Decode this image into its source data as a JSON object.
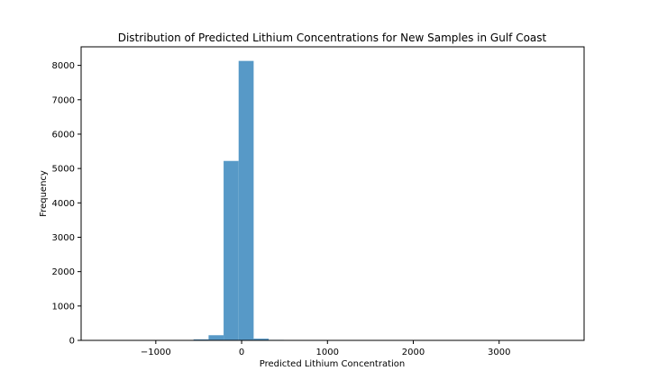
{
  "chart_data": {
    "type": "bar",
    "title": "Distribution of Predicted Lithium Concentrations for New Samples in Gulf Coast",
    "xlabel": "Predicted Lithium Concentration",
    "ylabel": "Frequency",
    "xlim": [
      -1870,
      3990
    ],
    "ylim": [
      0,
      8540
    ],
    "xticks": [
      -1000,
      0,
      1000,
      2000,
      3000
    ],
    "xtick_labels": [
      "−1000",
      "0",
      "1000",
      "2000",
      "3000"
    ],
    "yticks": [
      0,
      1000,
      2000,
      3000,
      4000,
      5000,
      6000,
      7000,
      8000
    ],
    "ytick_labels": [
      "0",
      "1000",
      "2000",
      "3000",
      "4000",
      "5000",
      "6000",
      "7000",
      "8000"
    ],
    "bar_color": "#5799c7",
    "grid": false,
    "bins": [
      {
        "x0": -1610,
        "x1": -1435,
        "count": 1
      },
      {
        "x0": -1435,
        "x1": -1260,
        "count": 1
      },
      {
        "x0": -1260,
        "x1": -1085,
        "count": 2
      },
      {
        "x0": -1085,
        "x1": -910,
        "count": 3
      },
      {
        "x0": -910,
        "x1": -735,
        "count": 5
      },
      {
        "x0": -735,
        "x1": -560,
        "count": 10
      },
      {
        "x0": -560,
        "x1": -385,
        "count": 30
      },
      {
        "x0": -385,
        "x1": -210,
        "count": 150
      },
      {
        "x0": -210,
        "x1": -35,
        "count": 5220
      },
      {
        "x0": -35,
        "x1": 140,
        "count": 8130
      },
      {
        "x0": 140,
        "x1": 315,
        "count": 50
      },
      {
        "x0": 315,
        "x1": 490,
        "count": 15
      },
      {
        "x0": 490,
        "x1": 665,
        "count": 5
      },
      {
        "x0": 665,
        "x1": 840,
        "count": 3
      },
      {
        "x0": 840,
        "x1": 1015,
        "count": 2
      },
      {
        "x0": 1015,
        "x1": 1190,
        "count": 1
      },
      {
        "x0": 1190,
        "x1": 1365,
        "count": 1
      },
      {
        "x0": 1365,
        "x1": 1540,
        "count": 1
      },
      {
        "x0": 1540,
        "x1": 1715,
        "count": 1
      },
      {
        "x0": 1715,
        "x1": 1890,
        "count": 1
      },
      {
        "x0": 1890,
        "x1": 2065,
        "count": 1
      },
      {
        "x0": 2065,
        "x1": 2240,
        "count": 1
      },
      {
        "x0": 2240,
        "x1": 2415,
        "count": 1
      },
      {
        "x0": 2415,
        "x1": 2590,
        "count": 1
      },
      {
        "x0": 2590,
        "x1": 2765,
        "count": 1
      },
      {
        "x0": 2765,
        "x1": 2940,
        "count": 1
      },
      {
        "x0": 2940,
        "x1": 3115,
        "count": 1
      },
      {
        "x0": 3115,
        "x1": 3290,
        "count": 1
      },
      {
        "x0": 3290,
        "x1": 3465,
        "count": 1
      },
      {
        "x0": 3465,
        "x1": 3640,
        "count": 1
      }
    ]
  }
}
